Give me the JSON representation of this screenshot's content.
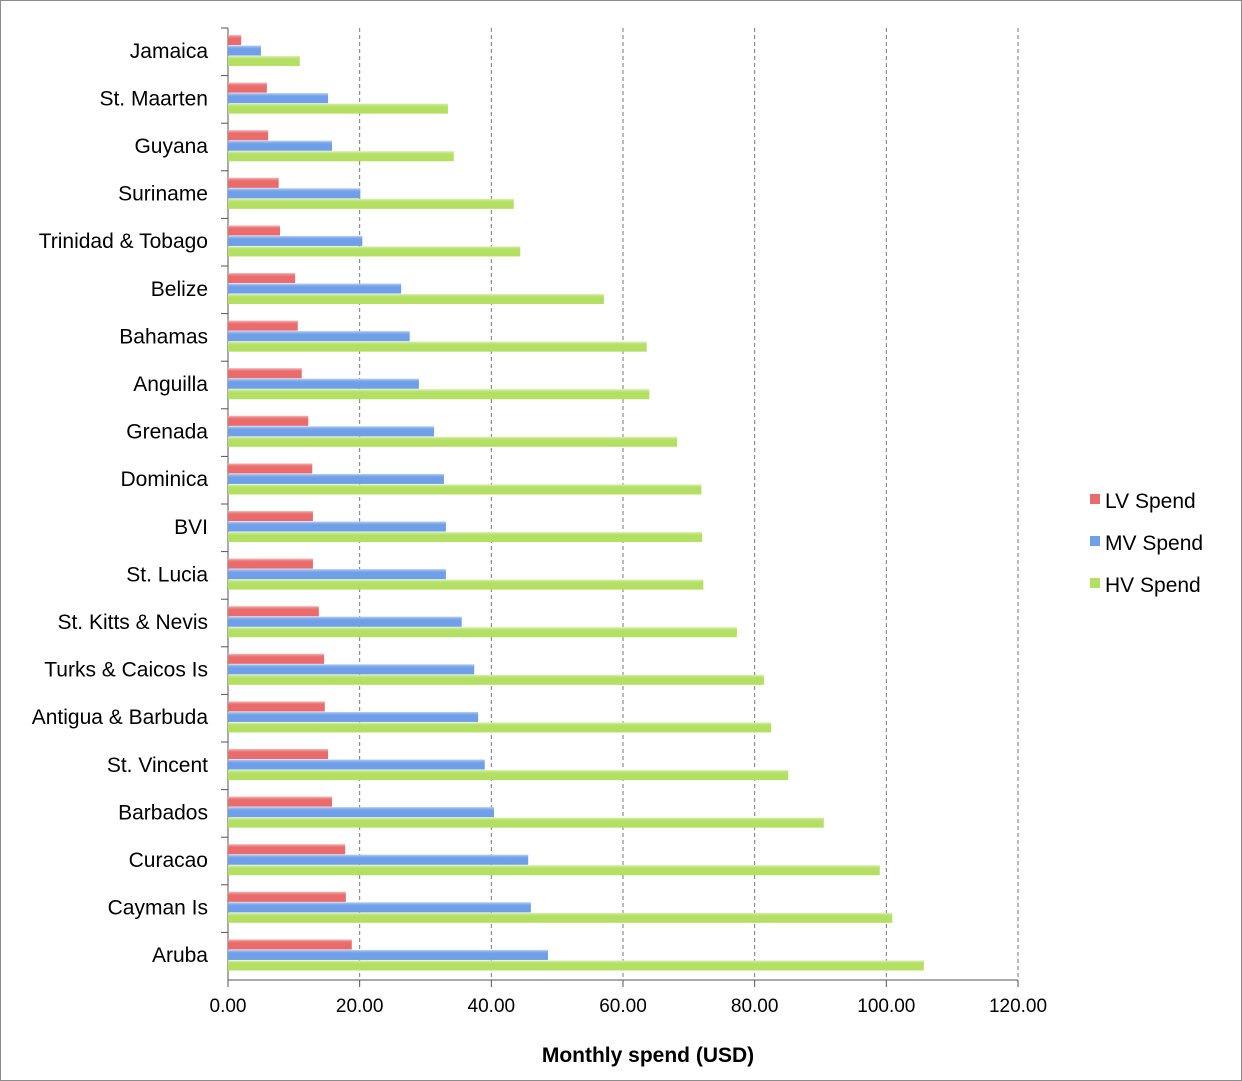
{
  "chart_data": {
    "type": "bar",
    "orientation": "horizontal",
    "title": "",
    "xlabel": "Monthly spend (USD)",
    "ylabel": "",
    "xlim": [
      0,
      120
    ],
    "xticks": [
      "0.00",
      "20.00",
      "40.00",
      "60.00",
      "80.00",
      "100.00",
      "120.00"
    ],
    "grid": "vertical dashed",
    "legend_position": "right",
    "categories": [
      "Jamaica",
      "St. Maarten",
      "Guyana",
      "Suriname",
      "Trinidad & Tobago",
      "Belize",
      "Bahamas",
      "Anguilla",
      "Grenada",
      "Dominica",
      "BVI",
      "St. Lucia",
      "St. Kitts & Nevis",
      "Turks & Caicos Is",
      "Antigua & Barbuda",
      "St. Vincent",
      "Barbados",
      "Curacao",
      "Cayman Is",
      "Aruba"
    ],
    "series": [
      {
        "name": "LV Spend",
        "color": "#ea6b6b",
        "values": [
          2.0,
          5.9,
          6.1,
          7.7,
          7.9,
          10.2,
          10.6,
          11.2,
          12.2,
          12.8,
          12.9,
          12.9,
          13.8,
          14.6,
          14.7,
          15.2,
          15.8,
          17.8,
          17.9,
          18.8
        ]
      },
      {
        "name": "MV Spend",
        "color": "#6f9fe8",
        "values": [
          5.0,
          15.2,
          15.8,
          20.1,
          20.4,
          26.3,
          27.6,
          29.0,
          31.3,
          32.8,
          33.1,
          33.1,
          35.5,
          37.4,
          38.0,
          39.0,
          40.4,
          45.6,
          46.0,
          48.6
        ]
      },
      {
        "name": "HV Spend",
        "color": "#b3df63",
        "values": [
          10.9,
          33.4,
          34.3,
          43.4,
          44.4,
          57.1,
          63.6,
          64.0,
          68.2,
          71.9,
          72.0,
          72.2,
          77.3,
          81.4,
          82.5,
          85.1,
          90.5,
          99.0,
          100.9,
          105.7
        ]
      }
    ]
  }
}
